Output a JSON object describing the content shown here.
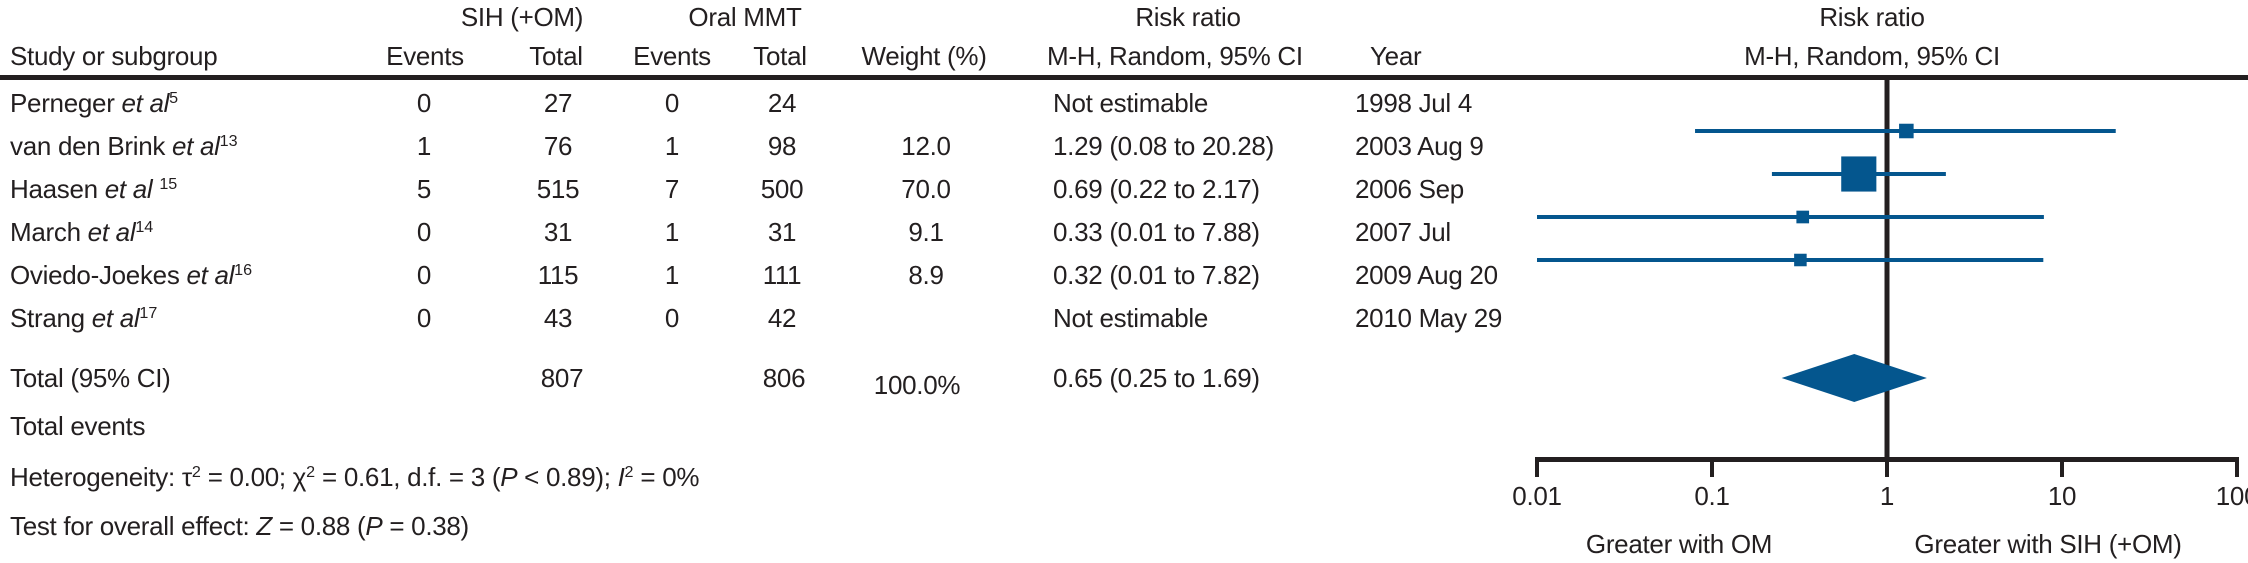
{
  "figure": {
    "colors": {
      "ink": "#231f20",
      "blue": "#04568e"
    },
    "header": {
      "group_sih": "SIH (+OM)",
      "group_omt": "Oral MMT",
      "risk_ratio_left": "Risk ratio",
      "risk_ratio_right": "Risk ratio",
      "method_left": "M-H, Random, 95% CI",
      "method_right": "M-H, Random, 95% CI",
      "col_study": "Study or subgroup",
      "col_events_sih": "Events",
      "col_total_sih": "Total",
      "col_events_omt": "Events",
      "col_total_omt": "Total",
      "col_weight": "Weight (%)",
      "col_year": "Year"
    }
  },
  "chart_data": {
    "type": "forest",
    "x_scale": "log10",
    "x_range": [
      0.01,
      100
    ],
    "null_line": 1,
    "effect_measure": "Risk ratio (M-H, Random, 95% CI)",
    "axis_ticks": [
      {
        "value": 0.01,
        "label": "0.01"
      },
      {
        "value": 0.1,
        "label": "0.1"
      },
      {
        "value": 1,
        "label": "1"
      },
      {
        "value": 10,
        "label": "10"
      },
      {
        "value": 100,
        "label": "100"
      }
    ],
    "direction_labels": {
      "left": "Greater with OM",
      "right": "Greater with SIH (+OM)"
    },
    "studies": [
      {
        "name_segments": [
          {
            "t": "Perneger "
          },
          {
            "t": "et al",
            "i": true
          },
          {
            "t": "5",
            "sup": true
          }
        ],
        "events_sih": "0",
        "total_sih": "27",
        "events_omt": "0",
        "total_omt": "24",
        "weight": "",
        "ci_text": "Not estimable",
        "year": "1998 Jul 4",
        "estimable": false
      },
      {
        "name_segments": [
          {
            "t": "van den Brink "
          },
          {
            "t": "et al",
            "i": true
          },
          {
            "t": "13",
            "sup": true
          }
        ],
        "events_sih": "1",
        "total_sih": "76",
        "events_omt": "1",
        "total_omt": "98",
        "weight": "12.0",
        "ci_text": "1.29 (0.08 to 20.28)",
        "year": "2003 Aug 9",
        "estimable": true,
        "rr": 1.29,
        "ci_low": 0.08,
        "ci_high": 20.28,
        "weight_pct": 12.0
      },
      {
        "name_segments": [
          {
            "t": "Haasen "
          },
          {
            "t": "et al",
            "i": true
          },
          {
            "t": " "
          },
          {
            "t": "15",
            "sup": true
          }
        ],
        "events_sih": "5",
        "total_sih": "515",
        "events_omt": "7",
        "total_omt": "500",
        "weight": "70.0",
        "ci_text": "0.69 (0.22 to 2.17)",
        "year": "2006 Sep",
        "estimable": true,
        "rr": 0.69,
        "ci_low": 0.22,
        "ci_high": 2.17,
        "weight_pct": 70.0
      },
      {
        "name_segments": [
          {
            "t": "March "
          },
          {
            "t": "et al",
            "i": true
          },
          {
            "t": "14",
            "sup": true
          }
        ],
        "events_sih": "0",
        "total_sih": "31",
        "events_omt": "1",
        "total_omt": "31",
        "weight": "9.1",
        "ci_text": "0.33 (0.01 to 7.88)",
        "year": "2007 Jul",
        "estimable": true,
        "rr": 0.33,
        "ci_low": 0.01,
        "ci_high": 7.88,
        "weight_pct": 9.1
      },
      {
        "name_segments": [
          {
            "t": "Oviedo-Joekes "
          },
          {
            "t": "et al",
            "i": true
          },
          {
            "t": "16",
            "sup": true
          }
        ],
        "events_sih": "0",
        "total_sih": "115",
        "events_omt": "1",
        "total_omt": "111",
        "weight": "8.9",
        "ci_text": "0.32 (0.01 to 7.82)",
        "year": "2009 Aug 20",
        "estimable": true,
        "rr": 0.32,
        "ci_low": 0.01,
        "ci_high": 7.82,
        "weight_pct": 8.9
      },
      {
        "name_segments": [
          {
            "t": "Strang "
          },
          {
            "t": "et al",
            "i": true
          },
          {
            "t": "17",
            "sup": true
          }
        ],
        "events_sih": "0",
        "total_sih": "43",
        "events_omt": "0",
        "total_omt": "42",
        "weight": "",
        "ci_text": "Not estimable",
        "year": "2010 May 29",
        "estimable": false
      }
    ],
    "total": {
      "label": "Total (95% CI)",
      "total_sih": "807",
      "total_omt": "806",
      "weight": "100.0%",
      "ci_text": "0.65 (0.25 to 1.69)",
      "rr": 0.65,
      "ci_low": 0.25,
      "ci_high": 1.69
    },
    "stats": {
      "total_events_label": "Total events",
      "heterogeneity_segments": [
        {
          "t": "Heterogeneity: "
        },
        {
          "t": "τ"
        },
        {
          "t": "2",
          "sup": true
        },
        {
          "t": " = 0.00; "
        },
        {
          "t": "χ"
        },
        {
          "t": "2",
          "sup": true
        },
        {
          "t": " = 0.61, d.f. = 3 ("
        },
        {
          "t": "P",
          "i": true
        },
        {
          "t": " < 0.89); "
        },
        {
          "t": "I",
          "i": true
        },
        {
          "t": "2",
          "sup": true
        },
        {
          "t": " = 0%"
        }
      ],
      "overall_effect_segments": [
        {
          "t": "Test for overall effect: "
        },
        {
          "t": "Z",
          "i": true
        },
        {
          "t": " = 0.88 ("
        },
        {
          "t": "P",
          "i": true
        },
        {
          "t": " = 0.38)"
        }
      ]
    }
  }
}
